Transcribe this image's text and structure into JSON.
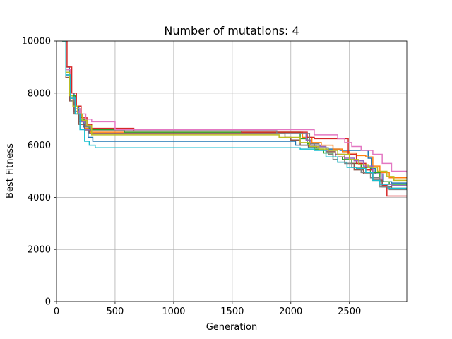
{
  "chart_data": {
    "type": "line",
    "title": "Number of mutations: 4",
    "xlabel": "Generation",
    "ylabel": "Best Fitness",
    "xlim": [
      0,
      2990
    ],
    "ylim": [
      0,
      10000
    ],
    "xticks": [
      0,
      500,
      1000,
      1500,
      2000,
      2500
    ],
    "yticks": [
      0,
      2000,
      4000,
      6000,
      8000,
      10000
    ],
    "grid": true,
    "series": [
      {
        "color": "#1f77b4",
        "points": [
          [
            50,
            10000
          ],
          [
            80,
            9000
          ],
          [
            110,
            8000
          ],
          [
            150,
            7500
          ],
          [
            190,
            7000
          ],
          [
            230,
            6700
          ],
          [
            270,
            6300
          ],
          [
            310,
            6150
          ],
          [
            2000,
            6150
          ],
          [
            2040,
            6000
          ],
          [
            2150,
            5900
          ],
          [
            2300,
            5850
          ],
          [
            2420,
            5800
          ],
          [
            2620,
            5800
          ],
          [
            2660,
            5500
          ],
          [
            2690,
            5100
          ],
          [
            2720,
            4900
          ],
          [
            2790,
            4600
          ],
          [
            2860,
            4550
          ],
          [
            2990,
            4550
          ]
        ]
      },
      {
        "color": "#ff7f0e",
        "points": [
          [
            50,
            10000
          ],
          [
            80,
            8800
          ],
          [
            120,
            7800
          ],
          [
            160,
            7300
          ],
          [
            200,
            6900
          ],
          [
            240,
            6650
          ],
          [
            290,
            6500
          ],
          [
            2050,
            6500
          ],
          [
            2100,
            6300
          ],
          [
            2180,
            6100
          ],
          [
            2260,
            6000
          ],
          [
            2360,
            5850
          ],
          [
            2440,
            5750
          ],
          [
            2500,
            5700
          ],
          [
            2560,
            5600
          ],
          [
            2640,
            5550
          ],
          [
            2700,
            5200
          ],
          [
            2760,
            4950
          ],
          [
            2840,
            4750
          ],
          [
            2990,
            4750
          ]
        ]
      },
      {
        "color": "#2ca02c",
        "points": [
          [
            50,
            10000
          ],
          [
            80,
            8900
          ],
          [
            120,
            7900
          ],
          [
            160,
            7400
          ],
          [
            200,
            7000
          ],
          [
            240,
            6750
          ],
          [
            280,
            6600
          ],
          [
            560,
            6600
          ],
          [
            580,
            6500
          ],
          [
            2030,
            6500
          ],
          [
            2080,
            6250
          ],
          [
            2140,
            6050
          ],
          [
            2200,
            5850
          ],
          [
            2280,
            5700
          ],
          [
            2360,
            5550
          ],
          [
            2440,
            5450
          ],
          [
            2520,
            5300
          ],
          [
            2600,
            5150
          ],
          [
            2680,
            4950
          ],
          [
            2760,
            4600
          ],
          [
            2840,
            4500
          ],
          [
            2990,
            4500
          ]
        ]
      },
      {
        "color": "#d62728",
        "points": [
          [
            50,
            10000
          ],
          [
            90,
            9000
          ],
          [
            130,
            8000
          ],
          [
            170,
            7500
          ],
          [
            210,
            7050
          ],
          [
            260,
            6800
          ],
          [
            300,
            6650
          ],
          [
            640,
            6650
          ],
          [
            660,
            6550
          ],
          [
            1560,
            6550
          ],
          [
            1580,
            6500
          ],
          [
            2100,
            6500
          ],
          [
            2140,
            6300
          ],
          [
            2200,
            6250
          ],
          [
            2280,
            6250
          ],
          [
            2460,
            6250
          ],
          [
            2490,
            5650
          ],
          [
            2560,
            5300
          ],
          [
            2640,
            5050
          ],
          [
            2700,
            4700
          ],
          [
            2780,
            4450
          ],
          [
            2820,
            4050
          ],
          [
            2990,
            4050
          ]
        ]
      },
      {
        "color": "#9467bd",
        "points": [
          [
            50,
            10000
          ],
          [
            80,
            8700
          ],
          [
            110,
            7800
          ],
          [
            150,
            7300
          ],
          [
            190,
            6900
          ],
          [
            240,
            6600
          ],
          [
            280,
            6450
          ],
          [
            2100,
            6450
          ],
          [
            2130,
            6200
          ],
          [
            2170,
            6000
          ],
          [
            2250,
            5950
          ],
          [
            2300,
            5800
          ],
          [
            2380,
            5650
          ],
          [
            2460,
            5500
          ],
          [
            2540,
            5400
          ],
          [
            2620,
            5200
          ],
          [
            2700,
            4900
          ],
          [
            2780,
            4500
          ],
          [
            2860,
            4450
          ],
          [
            2990,
            4450
          ]
        ]
      },
      {
        "color": "#8c564b",
        "points": [
          [
            50,
            10000
          ],
          [
            80,
            8600
          ],
          [
            110,
            7700
          ],
          [
            150,
            7200
          ],
          [
            190,
            6800
          ],
          [
            240,
            6550
          ],
          [
            280,
            6450
          ],
          [
            1900,
            6450
          ],
          [
            1950,
            6300
          ],
          [
            2000,
            6200
          ],
          [
            2080,
            6000
          ],
          [
            2150,
            5950
          ],
          [
            2220,
            5900
          ],
          [
            2300,
            5750
          ],
          [
            2380,
            5550
          ],
          [
            2460,
            5300
          ],
          [
            2540,
            5050
          ],
          [
            2620,
            4900
          ],
          [
            2700,
            4650
          ],
          [
            2780,
            4400
          ],
          [
            2860,
            4350
          ],
          [
            2990,
            4350
          ]
        ]
      },
      {
        "color": "#e377c2",
        "points": [
          [
            50,
            10000
          ],
          [
            80,
            8900
          ],
          [
            120,
            7800
          ],
          [
            160,
            7400
          ],
          [
            200,
            7200
          ],
          [
            250,
            7000
          ],
          [
            300,
            6900
          ],
          [
            480,
            6900
          ],
          [
            500,
            6600
          ],
          [
            2150,
            6600
          ],
          [
            2200,
            6400
          ],
          [
            2350,
            6400
          ],
          [
            2400,
            6250
          ],
          [
            2460,
            6100
          ],
          [
            2520,
            5950
          ],
          [
            2600,
            5800
          ],
          [
            2700,
            5650
          ],
          [
            2780,
            5300
          ],
          [
            2860,
            5000
          ],
          [
            2990,
            4950
          ]
        ]
      },
      {
        "color": "#7f7f7f",
        "points": [
          [
            50,
            10000
          ],
          [
            80,
            8700
          ],
          [
            120,
            7700
          ],
          [
            160,
            7200
          ],
          [
            200,
            6950
          ],
          [
            250,
            6700
          ],
          [
            290,
            6550
          ],
          [
            1850,
            6550
          ],
          [
            1880,
            6450
          ],
          [
            2100,
            6450
          ],
          [
            2160,
            6050
          ],
          [
            2240,
            5900
          ],
          [
            2320,
            5650
          ],
          [
            2360,
            5450
          ],
          [
            2400,
            5350
          ],
          [
            2460,
            5300
          ],
          [
            2520,
            5150
          ],
          [
            2600,
            4950
          ],
          [
            2680,
            4750
          ],
          [
            2760,
            4400
          ],
          [
            2840,
            4300
          ],
          [
            2990,
            4300
          ]
        ]
      },
      {
        "color": "#bcbd22",
        "points": [
          [
            50,
            10000
          ],
          [
            80,
            8800
          ],
          [
            110,
            7900
          ],
          [
            140,
            7500
          ],
          [
            180,
            7200
          ],
          [
            220,
            6950
          ],
          [
            260,
            6750
          ],
          [
            300,
            6400
          ],
          [
            1880,
            6400
          ],
          [
            1900,
            6300
          ],
          [
            2040,
            6300
          ],
          [
            2080,
            6100
          ],
          [
            2160,
            5950
          ],
          [
            2240,
            5850
          ],
          [
            2320,
            5800
          ],
          [
            2400,
            5650
          ],
          [
            2500,
            5450
          ],
          [
            2580,
            5250
          ],
          [
            2660,
            5150
          ],
          [
            2740,
            5000
          ],
          [
            2820,
            4800
          ],
          [
            2880,
            4650
          ],
          [
            2990,
            4650
          ]
        ]
      },
      {
        "color": "#17becf",
        "points": [
          [
            50,
            10000
          ],
          [
            80,
            8700
          ],
          [
            120,
            7800
          ],
          [
            160,
            7200
          ],
          [
            200,
            6600
          ],
          [
            240,
            6150
          ],
          [
            280,
            6000
          ],
          [
            330,
            5900
          ],
          [
            2000,
            5900
          ],
          [
            2080,
            5850
          ],
          [
            2200,
            5800
          ],
          [
            2300,
            5550
          ],
          [
            2400,
            5350
          ],
          [
            2480,
            5150
          ],
          [
            2560,
            5100
          ],
          [
            2640,
            4950
          ],
          [
            2700,
            4650
          ],
          [
            2760,
            4500
          ],
          [
            2830,
            4350
          ],
          [
            2990,
            4300
          ]
        ]
      }
    ]
  }
}
